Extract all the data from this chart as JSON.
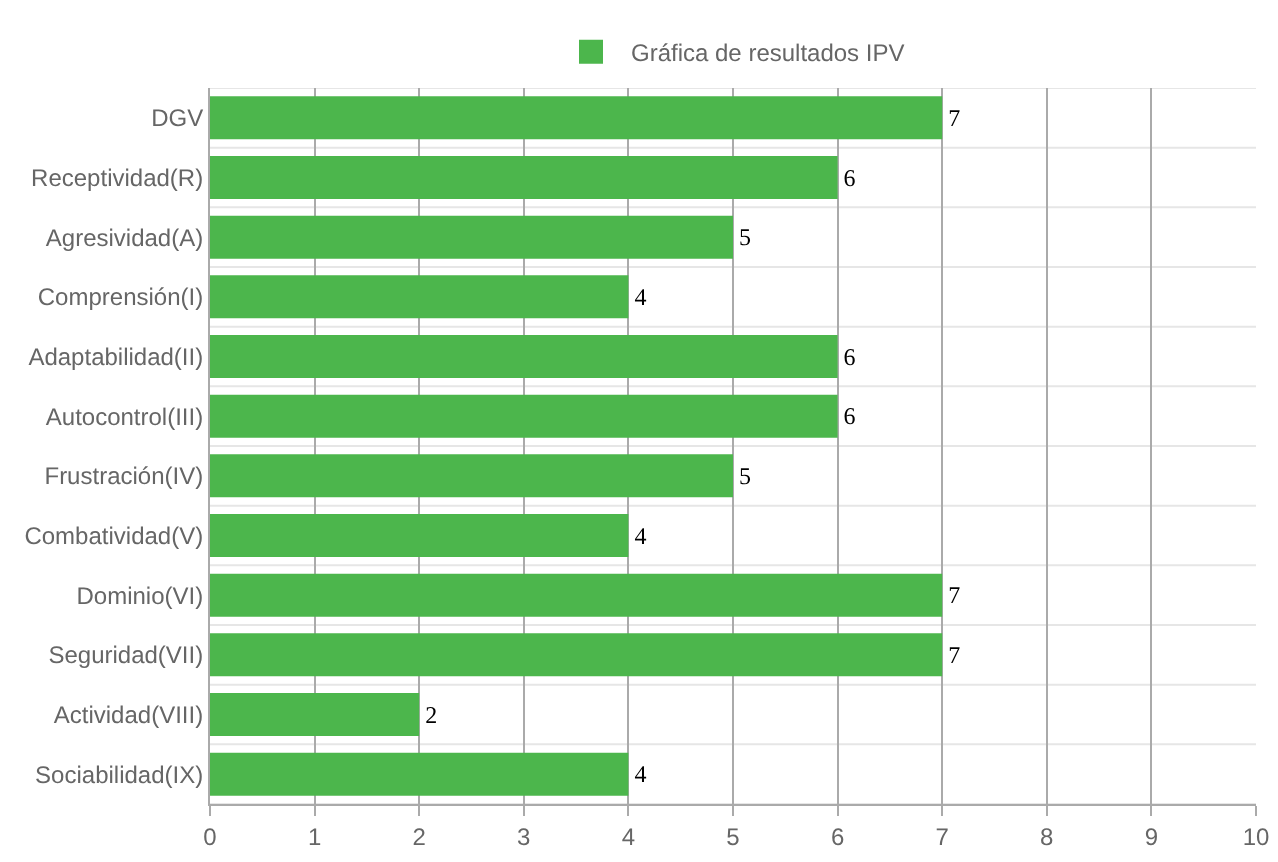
{
  "chart_data": {
    "type": "bar",
    "orientation": "horizontal",
    "categories": [
      "DGV",
      "Receptividad(R)",
      "Agresividad(A)",
      "Comprensión(I)",
      "Adaptabilidad(II)",
      "Autocontrol(III)",
      "Frustración(IV)",
      "Combatividad(V)",
      "Dominio(VI)",
      "Seguridad(VII)",
      "Actividad(VIII)",
      "Sociabilidad(IX)"
    ],
    "series": [
      {
        "name": "Gráfica de resultados IPV",
        "color": "#4cb64c",
        "values": [
          7,
          6,
          5,
          4,
          6,
          6,
          5,
          4,
          7,
          7,
          2,
          4
        ]
      }
    ],
    "xlim": [
      0,
      10
    ],
    "xticks": [
      0,
      1,
      2,
      3,
      4,
      5,
      6,
      7,
      8,
      9,
      10
    ],
    "grid": true,
    "legend": "top",
    "data_labels": true
  }
}
